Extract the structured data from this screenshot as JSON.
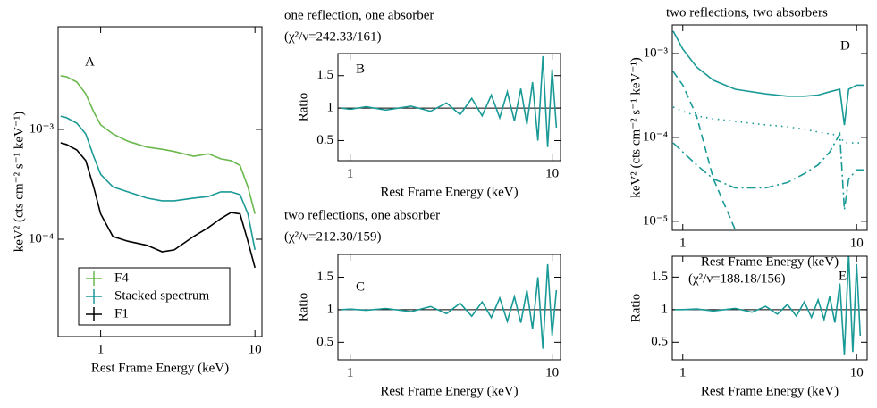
{
  "chart_data": [
    {
      "type": "line",
      "label": "A",
      "xlabel": "Rest Frame Energy (keV)",
      "ylabel": "keV² (cts cm⁻² s⁻¹ keV⁻¹)",
      "xlog": true,
      "ylog": true,
      "xlim": [
        0.53,
        11.1
      ],
      "ylim": [
        1.3e-05,
        0.0086
      ],
      "xticks": [
        1,
        10
      ],
      "yticks": [
        {
          "value": 0.001,
          "label": "10⁻³"
        },
        {
          "value": 0.0001,
          "label": "10⁻⁴"
        }
      ],
      "legend": "lower left",
      "x": [
        0.55,
        0.6,
        0.7,
        0.8,
        0.9,
        1,
        1.2,
        1.5,
        2,
        2.5,
        3,
        4,
        5,
        6,
        7,
        8,
        9,
        10
      ],
      "series": [
        {
          "name": "F4",
          "color": "#6bb84f",
          "style": "solid",
          "values": [
            0.00308,
            0.00302,
            0.0027,
            0.00211,
            0.00145,
            0.0011,
            0.00091,
            0.00078,
            0.00069,
            0.00066,
            0.00063,
            0.00057,
            0.0006,
            0.00054,
            0.00052,
            0.00047,
            0.0003,
            0.00017
          ]
        },
        {
          "name": "Stacked spectrum",
          "color": "#1a9a96",
          "style": "solid",
          "values": [
            0.00132,
            0.00128,
            0.00114,
            0.00091,
            0.00057,
            0.00039,
            0.0003,
            0.00027,
            0.000237,
            0.000224,
            0.000224,
            0.000237,
            0.000245,
            0.00027,
            0.00027,
            0.000255,
            0.00017,
            8e-05
          ]
        },
        {
          "name": "F1",
          "color": "#000000",
          "style": "solid",
          "values": [
            0.000755,
            0.00073,
            0.00065,
            0.00052,
            0.0003,
            0.00017,
            0.000106,
            9.6e-05,
            8.8e-05,
            7.7e-05,
            8e-05,
            0.000106,
            0.000128,
            0.000154,
            0.000175,
            0.00017,
            9.6e-05,
            5.5e-05
          ]
        }
      ]
    },
    {
      "type": "line",
      "label": "B",
      "title": "one reflection, one absorber",
      "subtitle": "(χ²/ν=242.33/161)",
      "xlabel": "Rest Frame Energy (keV)",
      "ylabel": "Ratio",
      "xlog": true,
      "ylog": false,
      "xlim": [
        0.87,
        11
      ],
      "ylim": [
        0.19,
        1.84
      ],
      "xticks": [
        1,
        10
      ],
      "yticks": [
        0.5,
        1,
        1.5
      ],
      "hline": 1,
      "x": [
        0.9,
        1,
        1.2,
        1.5,
        2,
        2.5,
        3,
        3.5,
        4,
        4.5,
        5,
        5.5,
        6,
        6.5,
        7,
        7.5,
        8,
        8.5,
        9,
        9.5,
        10,
        10.5
      ],
      "series": [
        {
          "color": "#1a9a96",
          "style": "solid",
          "values": [
            1.0,
            0.98,
            1.02,
            0.97,
            1.03,
            0.95,
            1.08,
            0.9,
            1.15,
            0.88,
            1.2,
            0.85,
            1.25,
            0.8,
            1.3,
            0.75,
            1.4,
            0.5,
            1.8,
            0.4,
            1.6,
            0.7
          ]
        }
      ]
    },
    {
      "type": "line",
      "label": "C",
      "title": "two reflections, one absorber",
      "subtitle": "(χ²/ν=212.30/159)",
      "xlabel": "Rest Frame Energy (keV)",
      "ylabel": "Ratio",
      "xlog": true,
      "ylog": false,
      "xlim": [
        0.87,
        11
      ],
      "ylim": [
        0.23,
        1.85
      ],
      "xticks": [
        1,
        10
      ],
      "yticks": [
        0.5,
        1,
        1.5
      ],
      "hline": 1,
      "x": [
        0.9,
        1,
        1.2,
        1.5,
        2,
        2.5,
        3,
        3.5,
        4,
        4.5,
        5,
        5.5,
        6,
        6.5,
        7,
        7.5,
        8,
        8.5,
        9,
        9.5,
        10,
        10.5
      ],
      "series": [
        {
          "color": "#1a9a96",
          "style": "solid",
          "values": [
            1.0,
            1.01,
            0.99,
            1.02,
            0.97,
            1.05,
            0.94,
            1.1,
            0.9,
            1.12,
            0.88,
            1.18,
            0.82,
            1.2,
            0.8,
            1.3,
            0.7,
            1.5,
            0.4,
            1.7,
            0.6,
            1.3
          ]
        }
      ]
    },
    {
      "type": "line",
      "label": "D",
      "title": "two reflections, two absorbers",
      "xlabel": "Rest Frame Energy (keV)",
      "ylabel": "keV² (cts cm⁻² s⁻¹ keV⁻¹)",
      "xlog": true,
      "ylog": true,
      "xlim": [
        0.87,
        11.5
      ],
      "ylim": [
        7.8e-06,
        0.00219
      ],
      "xticks": [
        1,
        10
      ],
      "yticks": [
        {
          "value": 0.001,
          "label": "10⁻³"
        },
        {
          "value": 0.0001,
          "label": "10⁻⁴"
        },
        {
          "value": 1e-05,
          "label": "10⁻⁵"
        }
      ],
      "x": [
        0.88,
        1,
        1.2,
        1.5,
        2,
        3,
        4,
        5,
        6,
        7,
        8,
        8.5,
        9,
        10,
        11
      ],
      "series": [
        {
          "color": "#1a9a96",
          "style": "solid",
          "values": [
            0.00185,
            0.00113,
            0.00069,
            0.00048,
            0.000375,
            0.00033,
            0.00031,
            0.00031,
            0.00032,
            0.00035,
            0.000375,
            0.00014,
            0.000375,
            0.00042,
            0.00042
          ]
        },
        {
          "color": "#1a9a96",
          "style": "dotted",
          "values": [
            0.00023,
            0.000204,
            0.00018,
            0.000167,
            0.000155,
            0.000141,
            0.000134,
            0.000125,
            0.000116,
            0.00011,
            0.000105,
            8.6e-05,
            8.6e-05,
            8.6e-05,
            8.6e-05
          ]
        },
        {
          "color": "#1a9a96",
          "style": "dashed",
          "values": [
            0.00061,
            0.00042,
            0.00018,
            3.2e-05,
            8e-06,
            null,
            null,
            null,
            null,
            null,
            null,
            null,
            null,
            null,
            null
          ]
        },
        {
          "color": "#1a9a96",
          "style": "dashdot",
          "values": [
            8.6e-05,
            6.7e-05,
            4.7e-05,
            3.2e-05,
            2.5e-05,
            2.5e-05,
            2.9e-05,
            3.7e-05,
            4.7e-05,
            6.7e-05,
            0.00011,
            1.37e-05,
            3.2e-05,
            4.1e-05,
            4.1e-05
          ]
        }
      ]
    },
    {
      "type": "line",
      "label": "E",
      "annotation": "(χ²/ν=188.18/156)",
      "xlabel": "Rest Frame Energy (keV)",
      "ylabel": "Ratio",
      "xlog": true,
      "ylog": false,
      "xlim": [
        0.87,
        11.5
      ],
      "ylim": [
        0.23,
        1.82
      ],
      "xticks": [
        1,
        10
      ],
      "yticks": [
        0.5,
        1,
        1.5
      ],
      "hline": 1,
      "x": [
        0.9,
        1,
        1.2,
        1.5,
        2,
        2.5,
        3,
        3.5,
        4,
        4.5,
        5,
        5.5,
        6,
        6.5,
        7,
        7.5,
        8,
        8.5,
        9,
        9.5,
        10,
        10.5
      ],
      "series": [
        {
          "color": "#1a9a96",
          "style": "solid",
          "values": [
            1.0,
            1.0,
            1.01,
            0.98,
            1.02,
            0.96,
            1.05,
            0.93,
            1.08,
            0.9,
            1.12,
            0.88,
            1.15,
            0.85,
            1.2,
            0.8,
            1.4,
            0.3,
            1.85,
            0.35,
            1.7,
            0.6
          ]
        }
      ]
    }
  ]
}
